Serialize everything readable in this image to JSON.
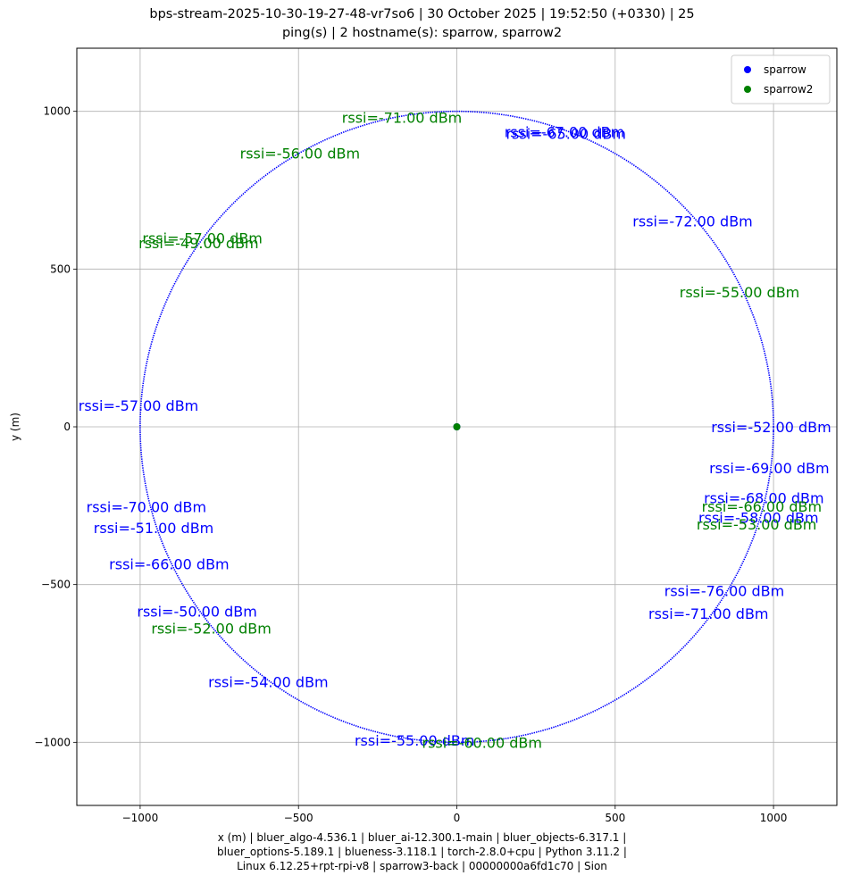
{
  "chart_data": {
    "type": "scatter",
    "title_lines": [
      "bps-stream-2025-10-30-19-27-48-vr7so6 | 30 October 2025 | 19:52:50 (+0330) | 25",
      "ping(s) | 2 hostname(s): sparrow, sparrow2"
    ],
    "xlabel_lines": [
      "x (m) | bluer_algo-4.536.1 | bluer_ai-12.300.1-main | bluer_objects-6.317.1 |",
      "bluer_options-5.189.1 | blueness-3.118.1 | torch-2.8.0+cpu | Python 3.11.2 |",
      "Linux 6.12.25+rpt-rpi-v8 | sparrow3-back | 00000000a6fd1c70 | Sion"
    ],
    "ylabel": "y (m)",
    "xlim": [
      -1200,
      1200
    ],
    "ylim": [
      -1200,
      1200
    ],
    "x_ticks": [
      -1000,
      -500,
      0,
      500,
      1000
    ],
    "y_ticks": [
      -1000,
      -500,
      0,
      500,
      1000
    ],
    "x_tick_labels": [
      "−1000",
      "−500",
      "0",
      "500",
      "1000"
    ],
    "y_tick_labels": [
      "−1000",
      "−500",
      "0",
      "500",
      "1000"
    ],
    "grid": true,
    "legend_position": "top-right",
    "trajectory": {
      "shape": "circle",
      "center": [
        0,
        0
      ],
      "radius": 1000,
      "color": "#0000ff"
    },
    "series": [
      {
        "name": "sparrow",
        "color": "#0000ff",
        "points": [
          [
            0,
            0
          ]
        ]
      },
      {
        "name": "sparrow2",
        "color": "#008000",
        "points": [
          [
            0,
            0
          ]
        ]
      }
    ],
    "annotations": [
      {
        "x": 150,
        "y": 935,
        "text": "rssi=-67.00 dBm",
        "color": "#0000ff"
      },
      {
        "x": 155,
        "y": 930,
        "text": "rssi=-65.00 dBm",
        "color": "#0000ff"
      },
      {
        "x": 555,
        "y": 652,
        "text": "rssi=-72.00 dBm",
        "color": "#0000ff"
      },
      {
        "x": -1195,
        "y": 68,
        "text": "rssi=-57.00 dBm",
        "color": "#0000ff"
      },
      {
        "x": 803,
        "y": 0,
        "text": "rssi=-52.00 dBm",
        "color": "#0000ff"
      },
      {
        "x": 797,
        "y": -130,
        "text": "rssi=-69.00 dBm",
        "color": "#0000ff"
      },
      {
        "x": 780,
        "y": -225,
        "text": "rssi=-68.00 dBm",
        "color": "#0000ff"
      },
      {
        "x": 763,
        "y": -287,
        "text": "rssi=-58.00 dBm",
        "color": "#0000ff"
      },
      {
        "x": -1170,
        "y": -253,
        "text": "rssi=-70.00 dBm",
        "color": "#0000ff"
      },
      {
        "x": -1147,
        "y": -320,
        "text": "rssi=-51.00 dBm",
        "color": "#0000ff"
      },
      {
        "x": -1098,
        "y": -435,
        "text": "rssi=-66.00 dBm",
        "color": "#0000ff"
      },
      {
        "x": 655,
        "y": -520,
        "text": "rssi=-76.00 dBm",
        "color": "#0000ff"
      },
      {
        "x": 605,
        "y": -592,
        "text": "rssi=-71.00 dBm",
        "color": "#0000ff"
      },
      {
        "x": -1010,
        "y": -585,
        "text": "rssi=-50.00 dBm",
        "color": "#0000ff"
      },
      {
        "x": -785,
        "y": -808,
        "text": "rssi=-54.00 dBm",
        "color": "#0000ff"
      },
      {
        "x": -323,
        "y": -993,
        "text": "rssi=-55.00 dBm",
        "color": "#0000ff"
      },
      {
        "x": -363,
        "y": 980,
        "text": "rssi=-71.00 dBm",
        "color": "#008000"
      },
      {
        "x": -685,
        "y": 868,
        "text": "rssi=-56.00 dBm",
        "color": "#008000"
      },
      {
        "x": -993,
        "y": 598,
        "text": "rssi=-57.00 dBm",
        "color": "#008000"
      },
      {
        "x": -1005,
        "y": 583,
        "text": "rssi=-49.00 dBm",
        "color": "#008000"
      },
      {
        "x": 703,
        "y": 428,
        "text": "rssi=-55.00 dBm",
        "color": "#008000"
      },
      {
        "x": 773,
        "y": -252,
        "text": "rssi=-66.00 dBm",
        "color": "#008000"
      },
      {
        "x": 757,
        "y": -308,
        "text": "rssi=-53.00 dBm",
        "color": "#008000"
      },
      {
        "x": -965,
        "y": -638,
        "text": "rssi=-52.00 dBm",
        "color": "#008000"
      },
      {
        "x": -110,
        "y": -1000,
        "text": "rssi=-60.00 dBm",
        "color": "#008000"
      }
    ]
  }
}
